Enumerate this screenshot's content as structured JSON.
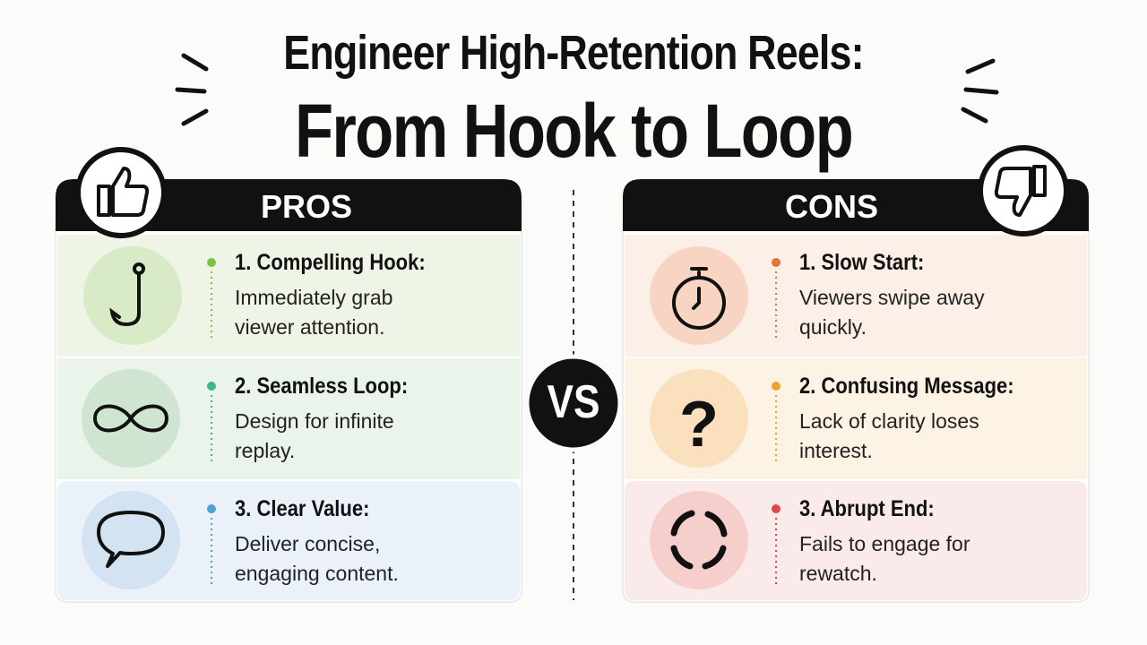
{
  "header": {
    "title_line1": "Engineer High-Retention Reels:",
    "title_line2": "From Hook to Loop"
  },
  "vs": "VS",
  "pros": {
    "heading": "PROS",
    "items": [
      {
        "title": "1. Compelling Hook:",
        "text": "Immediately grab viewer attention."
      },
      {
        "title": "2. Seamless Loop:",
        "text": "Design for infinite replay."
      },
      {
        "title": "3. Clear Value:",
        "text": "Deliver concise, engaging content."
      }
    ]
  },
  "cons": {
    "heading": "CONS",
    "items": [
      {
        "title": "1. Slow Start:",
        "text": "Viewers swipe away quickly."
      },
      {
        "title": "2. Confusing Message:",
        "text": "Lack of clarity loses interest."
      },
      {
        "title": "3. Abrupt End:",
        "text": "Fails to engage for rewatch."
      }
    ]
  }
}
